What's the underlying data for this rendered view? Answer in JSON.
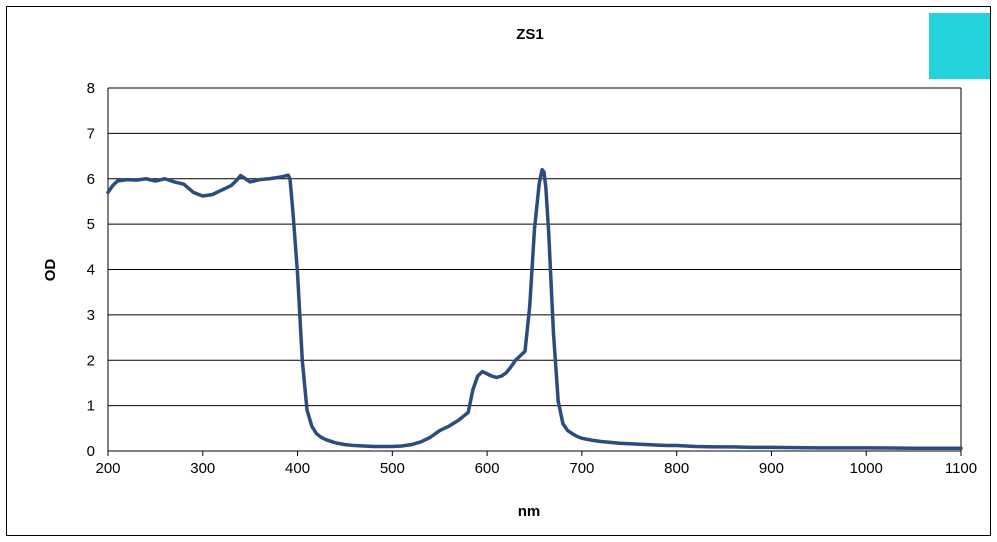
{
  "chart_data": {
    "type": "line",
    "title": "ZS1",
    "xlabel": "nm",
    "ylabel": "OD",
    "xlim": [
      200,
      1100
    ],
    "ylim": [
      0,
      8
    ],
    "x_ticks": [
      200,
      300,
      400,
      500,
      600,
      700,
      800,
      900,
      1000,
      1100
    ],
    "y_ticks": [
      0,
      1,
      2,
      3,
      4,
      5,
      6,
      7,
      8
    ],
    "grid": "horizontal",
    "legend": "none",
    "colors": {
      "line": "#2b4c7e",
      "swatch": "#22d3dd",
      "grid": "#000000"
    },
    "series": [
      {
        "x": [
          200,
          205,
          210,
          220,
          230,
          240,
          250,
          260,
          270,
          280,
          290,
          300,
          310,
          320,
          330,
          335,
          340,
          345,
          350,
          360,
          370,
          380,
          385,
          390,
          392,
          395,
          400,
          405,
          410,
          415,
          420,
          425,
          430,
          440,
          450,
          460,
          470,
          480,
          490,
          500,
          510,
          520,
          530,
          540,
          550,
          560,
          570,
          580,
          585,
          590,
          595,
          600,
          605,
          610,
          615,
          620,
          625,
          630,
          635,
          640,
          645,
          650,
          655,
          658,
          660,
          662,
          665,
          670,
          675,
          680,
          685,
          690,
          695,
          700,
          710,
          720,
          730,
          740,
          750,
          760,
          770,
          780,
          790,
          800,
          820,
          840,
          860,
          880,
          900,
          950,
          1000,
          1050,
          1100
        ],
        "y": [
          5.7,
          5.85,
          5.95,
          5.98,
          5.97,
          6.0,
          5.95,
          6.0,
          5.93,
          5.88,
          5.7,
          5.62,
          5.65,
          5.75,
          5.85,
          5.95,
          6.07,
          6.0,
          5.93,
          5.98,
          6.0,
          6.03,
          6.05,
          6.08,
          6.0,
          5.3,
          3.9,
          2.0,
          0.9,
          0.55,
          0.38,
          0.3,
          0.25,
          0.18,
          0.14,
          0.12,
          0.11,
          0.1,
          0.1,
          0.1,
          0.11,
          0.14,
          0.2,
          0.3,
          0.45,
          0.55,
          0.68,
          0.85,
          1.35,
          1.65,
          1.75,
          1.7,
          1.65,
          1.62,
          1.65,
          1.72,
          1.85,
          2.0,
          2.1,
          2.2,
          3.2,
          4.9,
          5.9,
          6.2,
          6.15,
          5.8,
          4.8,
          2.6,
          1.1,
          0.6,
          0.45,
          0.38,
          0.32,
          0.28,
          0.24,
          0.21,
          0.19,
          0.17,
          0.16,
          0.15,
          0.14,
          0.13,
          0.12,
          0.12,
          0.1,
          0.09,
          0.09,
          0.08,
          0.08,
          0.07,
          0.07,
          0.06,
          0.06
        ]
      }
    ]
  }
}
